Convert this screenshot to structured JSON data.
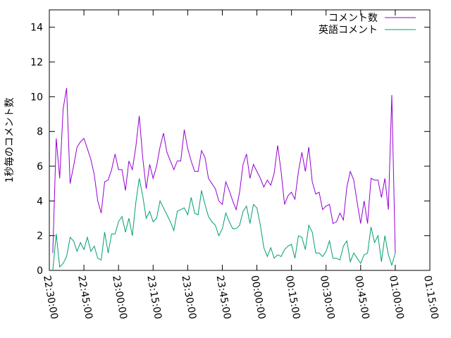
{
  "chart_data": {
    "type": "line",
    "title": "",
    "xlabel": "",
    "ylabel": "1秒毎のコメント数",
    "ylim": [
      0,
      15
    ],
    "xlim": [
      "22:30:00",
      "01:15:00"
    ],
    "y_ticks": [
      0,
      2,
      4,
      6,
      8,
      10,
      12,
      14
    ],
    "x_ticks": [
      "22:30:00",
      "22:45:00",
      "23:00:00",
      "23:15:00",
      "23:30:00",
      "23:45:00",
      "00:00:00",
      "00:15:00",
      "00:30:00",
      "00:45:00",
      "01:00:00",
      "01:15:00"
    ],
    "grid": false,
    "legend_position": "top-right",
    "x_interval_minutes": 1.5,
    "series": [
      {
        "name": "コメント数",
        "color": "#9400d3",
        "values": [
          1.0,
          7.6,
          5.3,
          9.3,
          10.5,
          5.0,
          6.0,
          7.1,
          7.4,
          7.6,
          7.0,
          6.4,
          5.5,
          4.0,
          3.3,
          5.1,
          5.2,
          5.8,
          6.7,
          5.8,
          5.8,
          4.6,
          6.3,
          5.8,
          7.1,
          8.9,
          6.5,
          4.7,
          6.1,
          5.3,
          6.0,
          7.1,
          7.9,
          6.8,
          6.3,
          5.8,
          6.3,
          6.3,
          8.1,
          7.0,
          6.3,
          5.7,
          5.7,
          6.9,
          6.5,
          5.3,
          5.0,
          4.7,
          4.0,
          3.8,
          5.1,
          4.6,
          4.0,
          3.5,
          4.5,
          6.1,
          6.7,
          5.3,
          6.1,
          5.7,
          5.3,
          4.8,
          5.2,
          4.9,
          5.6,
          7.2,
          5.7,
          3.8,
          4.3,
          4.5,
          4.1,
          5.7,
          6.8,
          5.7,
          7.1,
          5.1,
          4.4,
          4.5,
          3.5,
          3.7,
          3.8,
          2.7,
          2.8,
          3.3,
          2.9,
          4.8,
          5.7,
          5.2,
          3.9,
          2.7,
          4.0,
          2.7,
          5.3,
          5.2,
          5.2,
          4.2,
          5.3,
          3.5,
          10.1,
          1.0
        ]
      },
      {
        "name": "英語コメント",
        "color": "#009e73",
        "values": [
          0.0,
          2.1,
          0.2,
          0.4,
          0.8,
          1.9,
          1.7,
          1.1,
          1.6,
          1.2,
          1.9,
          1.1,
          1.4,
          0.7,
          0.6,
          2.2,
          1.0,
          2.1,
          2.1,
          2.8,
          3.1,
          2.2,
          3.0,
          2.0,
          3.9,
          5.3,
          4.3,
          3.0,
          3.4,
          2.8,
          3.0,
          4.0,
          3.6,
          3.2,
          2.8,
          2.3,
          3.4,
          3.5,
          3.6,
          3.2,
          4.2,
          3.3,
          3.2,
          4.6,
          3.8,
          3.1,
          2.8,
          2.6,
          2.0,
          2.4,
          3.3,
          2.8,
          2.4,
          2.4,
          2.6,
          3.4,
          3.7,
          2.7,
          3.8,
          3.6,
          2.6,
          1.3,
          0.8,
          1.3,
          0.7,
          0.9,
          0.8,
          1.2,
          1.4,
          1.5,
          0.7,
          2.0,
          1.9,
          1.2,
          2.6,
          2.2,
          1.0,
          1.0,
          0.8,
          1.1,
          1.7,
          0.7,
          0.7,
          0.6,
          1.4,
          1.7,
          0.5,
          1.0,
          0.7,
          0.4,
          0.9,
          1.0,
          2.5,
          1.6,
          2.0,
          0.5,
          2.0,
          0.9,
          0.3,
          1.0
        ]
      }
    ]
  }
}
